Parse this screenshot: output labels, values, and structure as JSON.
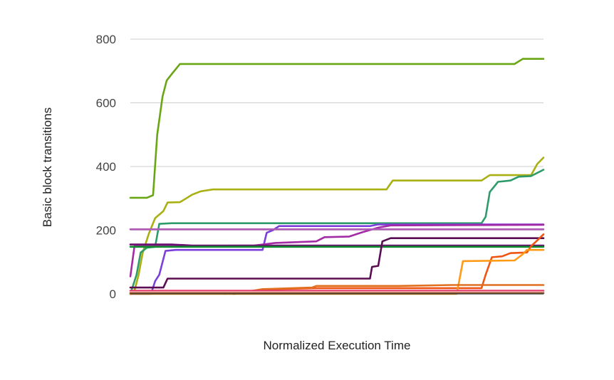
{
  "chart_data": {
    "type": "line",
    "title": "",
    "xlabel": "Normalized Execution Time",
    "ylabel": "Basic block transitions",
    "xlim": [
      0,
      1
    ],
    "ylim": [
      0,
      800
    ],
    "yticks": [
      0,
      200,
      400,
      600,
      800
    ],
    "ytick_labels": [
      "0",
      "200",
      "400",
      "600",
      "800"
    ],
    "grid": "horizontal",
    "legend": "none",
    "series": [
      {
        "color": "#6aa614",
        "points": [
          [
            0,
            302
          ],
          [
            0.04,
            302
          ],
          [
            0.055,
            310
          ],
          [
            0.065,
            500
          ],
          [
            0.078,
            620
          ],
          [
            0.088,
            670
          ],
          [
            0.1,
            690
          ],
          [
            0.12,
            722
          ],
          [
            0.2,
            722
          ],
          [
            0.93,
            722
          ],
          [
            0.95,
            738
          ],
          [
            1,
            738
          ]
        ]
      },
      {
        "color": "#a8b012",
        "points": [
          [
            0,
            0
          ],
          [
            0.01,
            10
          ],
          [
            0.02,
            60
          ],
          [
            0.03,
            130
          ],
          [
            0.045,
            190
          ],
          [
            0.06,
            238
          ],
          [
            0.08,
            260
          ],
          [
            0.09,
            287
          ],
          [
            0.12,
            288
          ],
          [
            0.135,
            300
          ],
          [
            0.15,
            312
          ],
          [
            0.17,
            322
          ],
          [
            0.2,
            328
          ],
          [
            0.62,
            328
          ],
          [
            0.635,
            356
          ],
          [
            0.85,
            356
          ],
          [
            0.87,
            373
          ],
          [
            0.97,
            373
          ],
          [
            0.985,
            408
          ],
          [
            1,
            428
          ]
        ]
      },
      {
        "color": "#2f9b6a",
        "points": [
          [
            0,
            0
          ],
          [
            0.015,
            60
          ],
          [
            0.025,
            130
          ],
          [
            0.04,
            145
          ],
          [
            0.06,
            148
          ],
          [
            0.07,
            220
          ],
          [
            0.1,
            222
          ],
          [
            0.85,
            222
          ],
          [
            0.86,
            242
          ],
          [
            0.87,
            320
          ],
          [
            0.89,
            352
          ],
          [
            0.92,
            356
          ],
          [
            0.94,
            368
          ],
          [
            0.97,
            370
          ],
          [
            1,
            390
          ]
        ]
      },
      {
        "color": "#7d3fdc",
        "points": [
          [
            0,
            0
          ],
          [
            0.05,
            0
          ],
          [
            0.06,
            40
          ],
          [
            0.07,
            60
          ],
          [
            0.085,
            135
          ],
          [
            0.11,
            138
          ],
          [
            0.32,
            138
          ],
          [
            0.33,
            192
          ],
          [
            0.345,
            200
          ],
          [
            0.36,
            213
          ],
          [
            0.58,
            213
          ],
          [
            0.6,
            218
          ],
          [
            1,
            218
          ]
        ]
      },
      {
        "color": "#a32ca6",
        "points": [
          [
            0,
            55
          ],
          [
            0.01,
            150
          ],
          [
            0.05,
            150
          ],
          [
            0.3,
            152
          ],
          [
            0.35,
            160
          ],
          [
            0.45,
            165
          ],
          [
            0.47,
            178
          ],
          [
            0.53,
            180
          ],
          [
            0.56,
            193
          ],
          [
            0.6,
            208
          ],
          [
            0.63,
            215
          ],
          [
            1,
            217
          ]
        ]
      },
      {
        "color": "#b05ab8",
        "points": [
          [
            0,
            203
          ],
          [
            1,
            203
          ]
        ]
      },
      {
        "color": "#6a0d6e",
        "points": [
          [
            0,
            155
          ],
          [
            0.1,
            155
          ],
          [
            0.15,
            152
          ],
          [
            0.3,
            152
          ],
          [
            1,
            152
          ]
        ]
      },
      {
        "color": "#0c8a2c",
        "points": [
          [
            0,
            148
          ],
          [
            0.5,
            148
          ],
          [
            1,
            148
          ]
        ]
      },
      {
        "color": "#5a0d52",
        "points": [
          [
            0,
            20
          ],
          [
            0.08,
            20
          ],
          [
            0.09,
            48
          ],
          [
            0.58,
            48
          ],
          [
            0.585,
            85
          ],
          [
            0.6,
            88
          ],
          [
            0.61,
            165
          ],
          [
            0.63,
            175
          ],
          [
            1,
            175
          ]
        ]
      },
      {
        "color": "#ee5512",
        "points": [
          [
            0.23,
            0
          ],
          [
            0.25,
            5
          ],
          [
            0.32,
            10
          ],
          [
            0.35,
            15
          ],
          [
            0.45,
            18
          ],
          [
            0.85,
            18
          ],
          [
            0.86,
            60
          ],
          [
            0.875,
            115
          ],
          [
            0.9,
            118
          ],
          [
            0.92,
            128
          ],
          [
            0.96,
            130
          ],
          [
            0.97,
            150
          ],
          [
            0.985,
            168
          ],
          [
            1,
            187
          ]
        ]
      },
      {
        "color": "#ff9a14",
        "points": [
          [
            0,
            0
          ],
          [
            0.79,
            0
          ],
          [
            0.805,
            103
          ],
          [
            0.93,
            105
          ],
          [
            0.95,
            125
          ],
          [
            0.96,
            138
          ],
          [
            1,
            138
          ]
        ]
      },
      {
        "color": "#e07020",
        "points": [
          [
            0.25,
            0
          ],
          [
            0.32,
            15
          ],
          [
            0.44,
            20
          ],
          [
            0.45,
            25
          ],
          [
            0.65,
            25
          ],
          [
            0.78,
            28
          ],
          [
            0.85,
            28
          ],
          [
            1,
            28
          ]
        ]
      },
      {
        "color": "#e23a6a",
        "points": [
          [
            0,
            10
          ],
          [
            1,
            10
          ]
        ]
      },
      {
        "color": "#f2a0a8",
        "points": [
          [
            0,
            6
          ],
          [
            1,
            6
          ]
        ]
      },
      {
        "color": "#8c5a2a",
        "points": [
          [
            0,
            2
          ],
          [
            1,
            2
          ]
        ]
      }
    ]
  }
}
